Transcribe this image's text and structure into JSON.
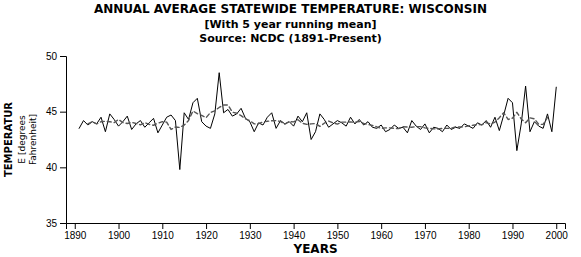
{
  "chart_data": {
    "type": "line",
    "title": "ANNUAL AVERAGE STATEWIDE TEMPERATURE: WISCONSIN",
    "subtitle": "[With 5 year running mean]",
    "source": "Source: NCDC (1891-Present)",
    "xlabel": "YEARS",
    "ylabel": [
      "TEMPERATUR",
      "E [degrees",
      "Fahrenheit]"
    ],
    "xlim": [
      1888,
      2002
    ],
    "ylim": [
      35,
      50
    ],
    "xticks": [
      1890,
      1900,
      1910,
      1920,
      1930,
      1940,
      1950,
      1960,
      1970,
      1980,
      1990,
      2000
    ],
    "yticks": [
      35,
      40,
      45,
      50
    ],
    "grid": false,
    "x": [
      1891,
      1892,
      1893,
      1894,
      1895,
      1896,
      1897,
      1898,
      1899,
      1900,
      1901,
      1902,
      1903,
      1904,
      1905,
      1906,
      1907,
      1908,
      1909,
      1910,
      1911,
      1912,
      1913,
      1914,
      1915,
      1916,
      1917,
      1918,
      1919,
      1920,
      1921,
      1922,
      1923,
      1924,
      1925,
      1926,
      1927,
      1928,
      1929,
      1930,
      1931,
      1932,
      1933,
      1934,
      1935,
      1936,
      1937,
      1938,
      1939,
      1940,
      1941,
      1942,
      1943,
      1944,
      1945,
      1946,
      1947,
      1948,
      1949,
      1950,
      1951,
      1952,
      1953,
      1954,
      1955,
      1956,
      1957,
      1958,
      1959,
      1960,
      1961,
      1962,
      1963,
      1964,
      1965,
      1966,
      1967,
      1968,
      1969,
      1970,
      1971,
      1972,
      1973,
      1974,
      1975,
      1976,
      1977,
      1978,
      1979,
      1980,
      1981,
      1982,
      1983,
      1984,
      1985,
      1986,
      1987,
      1988,
      1989,
      1990,
      1991,
      1992,
      1993,
      1994,
      1995,
      1996,
      1997,
      1998,
      1999,
      2000
    ],
    "series": [
      {
        "color": "#000000",
        "line_style": "solid",
        "values": [
          43.5,
          44.2,
          43.8,
          44.1,
          43.9,
          44.5,
          43.2,
          44.8,
          44.3,
          43.7,
          44.1,
          44.6,
          43.4,
          43.9,
          44.2,
          43.6,
          44.0,
          44.4,
          43.1,
          43.8,
          44.5,
          44.7,
          44.2,
          39.8,
          44.9,
          44.3,
          45.8,
          46.2,
          44.1,
          43.7,
          43.5,
          44.8,
          48.5,
          44.9,
          45.2,
          44.6,
          44.8,
          45.3,
          44.4,
          44.1,
          43.2,
          44.0,
          43.8,
          44.5,
          44.9,
          43.5,
          44.2,
          43.9,
          44.1,
          43.7,
          44.6,
          44.1,
          44.9,
          42.5,
          43.2,
          44.8,
          44.3,
          43.6,
          43.9,
          44.2,
          44.0,
          43.7,
          44.5,
          43.9,
          44.3,
          43.8,
          44.1,
          43.6,
          43.5,
          43.8,
          43.2,
          43.4,
          43.8,
          43.5,
          43.6,
          43.1,
          44.2,
          43.7,
          43.4,
          43.9,
          43.1,
          43.6,
          43.5,
          43.2,
          43.8,
          43.4,
          43.6,
          43.5,
          43.9,
          43.7,
          43.5,
          44.0,
          43.8,
          44.2,
          43.6,
          44.5,
          43.3,
          44.7,
          46.2,
          45.8,
          41.5,
          43.9,
          47.3,
          43.2,
          44.1,
          43.7,
          43.5,
          44.8,
          43.2,
          47.2
        ]
      },
      {
        "color": "#555555",
        "line_style": "dashed",
        "values": [
          null,
          null,
          43.9,
          44.1,
          43.9,
          44.1,
          44.14,
          44.1,
          44.02,
          44.3,
          44.02,
          43.94,
          44.04,
          43.94,
          43.82,
          44.02,
          43.86,
          43.78,
          43.96,
          44.1,
          44.06,
          43.4,
          43.62,
          43.58,
          43.8,
          44.2,
          45.06,
          44.82,
          44.66,
          44.46,
          44.92,
          45.08,
          45.38,
          45.6,
          45.6,
          44.96,
          44.86,
          44.64,
          44.36,
          44.2,
          43.9,
          43.92,
          44.08,
          44.14,
          44.18,
          44.2,
          44.12,
          43.88,
          44.1,
          44.08,
          44.28,
          43.96,
          43.86,
          43.9,
          43.94,
          43.68,
          43.96,
          44.16,
          44.0,
          43.88,
          44.06,
          44.06,
          44.08,
          44.04,
          44.12,
          43.94,
          43.86,
          43.76,
          43.64,
          43.5,
          43.54,
          43.54,
          43.5,
          43.48,
          43.64,
          43.62,
          43.6,
          43.66,
          43.66,
          43.54,
          43.5,
          43.46,
          43.44,
          43.5,
          43.5,
          43.5,
          43.64,
          43.62,
          43.64,
          43.72,
          43.78,
          43.84,
          43.82,
          44.02,
          43.88,
          44.06,
          44.46,
          44.9,
          44.3,
          44.42,
          44.94,
          44.34,
          44.0,
          44.44,
          44.36,
          43.86,
          43.86,
          44.48,
          null,
          null
        ]
      }
    ]
  }
}
